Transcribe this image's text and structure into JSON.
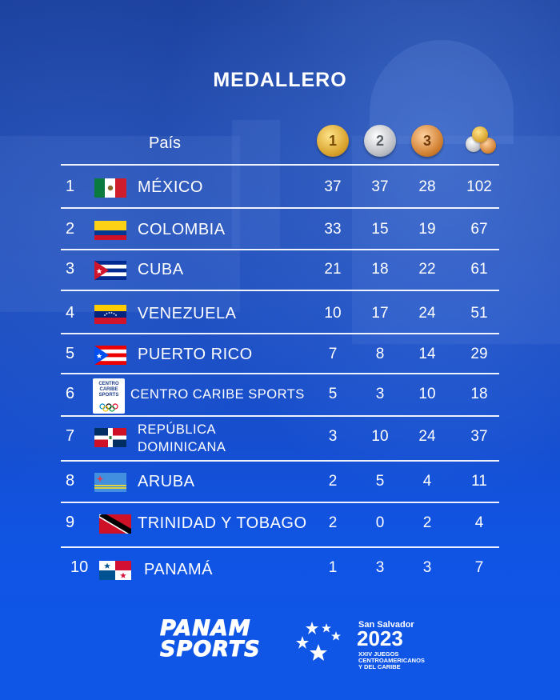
{
  "title": "MEDALLERO",
  "header": {
    "country_label": "País",
    "gold_label": "1",
    "silver_label": "2",
    "bronze_label": "3",
    "total_icon": "medals-pile-icon"
  },
  "rows": [
    {
      "rank": "1",
      "name": "MÉXICO",
      "gold": "37",
      "silver": "37",
      "bronze": "28",
      "total": "102"
    },
    {
      "rank": "2",
      "name": "COLOMBIA",
      "gold": "33",
      "silver": "15",
      "bronze": "19",
      "total": "67"
    },
    {
      "rank": "3",
      "name": "CUBA",
      "gold": "21",
      "silver": "18",
      "bronze": "22",
      "total": "61"
    },
    {
      "rank": "4",
      "name": "VENEZUELA",
      "gold": "10",
      "silver": "17",
      "bronze": "24",
      "total": "51"
    },
    {
      "rank": "5",
      "name": "PUERTO RICO",
      "gold": "7",
      "silver": "8",
      "bronze": "14",
      "total": "29"
    },
    {
      "rank": "6",
      "name": "CENTRO CARIBE SPORTS",
      "gold": "5",
      "silver": "3",
      "bronze": "10",
      "total": "18",
      "flag_text": "CENTRO CARIBE SPORTS"
    },
    {
      "rank": "7",
      "name_line1": "REPÚBLICA",
      "name_line2": "DOMINICANA",
      "gold": "3",
      "silver": "10",
      "bronze": "24",
      "total": "37"
    },
    {
      "rank": "8",
      "name": "ARUBA",
      "gold": "2",
      "silver": "5",
      "bronze": "4",
      "total": "11"
    },
    {
      "rank": "9",
      "name": "TRINIDAD Y TOBAGO",
      "gold": "2",
      "silver": "0",
      "bronze": "2",
      "total": "4"
    },
    {
      "rank": "10",
      "name": "PANAMÁ",
      "gold": "1",
      "silver": "3",
      "bronze": "3",
      "total": "7"
    }
  ],
  "footer": {
    "panam_line1": "PANAM",
    "panam_line2": "SPORTS",
    "event_city": "San Salvador",
    "event_year": "2023",
    "event_sub1": "XXIV JUEGOS",
    "event_sub2": "CENTROAMERICANOS",
    "event_sub3": "Y DEL CARIBE"
  },
  "colors": {
    "background": "#1450d6",
    "gold": "#d8a12a",
    "silver": "#b9bcc2",
    "bronze": "#d07e2e"
  }
}
